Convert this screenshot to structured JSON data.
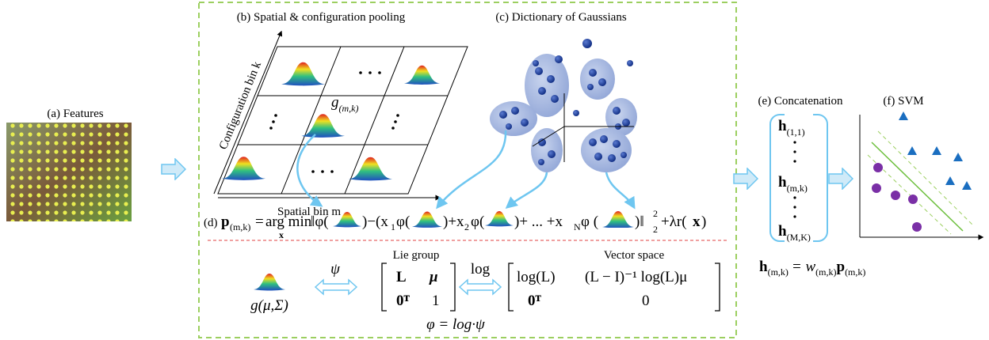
{
  "panels": {
    "a": "(a) Features",
    "b": "(b) Spatial & configuration pooling",
    "c": "(c) Dictionary of Gaussians",
    "e": "(e) Concatenation",
    "f": "(f) SVM"
  },
  "pooling": {
    "y_axis": "Configuration bin k",
    "x_axis": "Spatial bin m",
    "g": "g",
    "g_sub": "(m,k)"
  },
  "equation": [
    "(d)",
    "p",
    "(m,k)",
    "=",
    "arg min",
    "x",
    "‖φ(",
    ")−(x",
    "1",
    "φ(",
    ")+x",
    "2",
    "φ(",
    ")+ ... +x",
    "N",
    "φ (",
    ")‖",
    "2",
    "2",
    "+λr(",
    "x",
    ")"
  ],
  "lie": {
    "left_title": "Lie group",
    "right_title": "Vector space",
    "psi": "ψ",
    "log": "log",
    "g": "g(μ,Σ)",
    "m1": [
      "L",
      "μ",
      "0ᵀ",
      "1"
    ],
    "m2": [
      "log(L)",
      "(L − I)⁻¹ log(L)μ",
      "0ᵀ",
      "0"
    ],
    "phi": "φ = log·ψ"
  },
  "concat": {
    "h": "h",
    "subs": [
      "(1,1)",
      "(m,k)",
      "(M,K)"
    ],
    "f": [
      "h",
      "(m,k)",
      "= w",
      "(m,k)",
      "p",
      "(m,k)"
    ]
  }
}
